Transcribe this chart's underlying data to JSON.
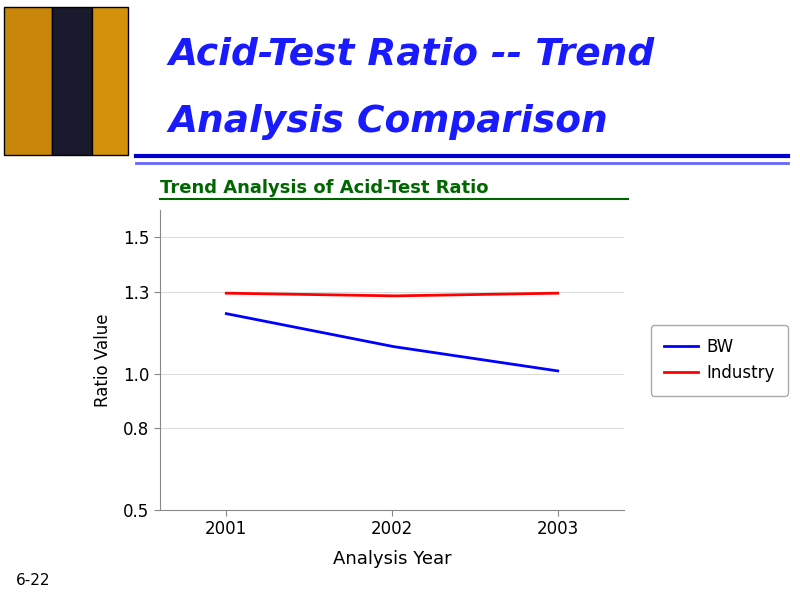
{
  "title_line1": "Acid-Test Ratio -- Trend",
  "title_line2": "Analysis Comparison",
  "chart_title": "Trend Analysis of Acid-Test Ratio",
  "xlabel": "Analysis Year",
  "ylabel": "Ratio Value",
  "years": [
    2001,
    2002,
    2003
  ],
  "bw_values": [
    1.22,
    1.1,
    1.01
  ],
  "industry_values": [
    1.295,
    1.285,
    1.295
  ],
  "ylim": [
    0.5,
    1.6
  ],
  "yticks": [
    0.5,
    0.8,
    1.0,
    1.3,
    1.5
  ],
  "xticks": [
    2001,
    2002,
    2003
  ],
  "bw_color": "#0000FF",
  "industry_color": "#FF0000",
  "title_color": "#1a1aff",
  "chart_title_color": "#006600",
  "header_bg": "#ffffff",
  "plot_bg": "#ffffff",
  "slide_bg": "#ffffff",
  "legend_labels": [
    "BW",
    "Industry"
  ],
  "footnote": "6-22",
  "line_width": 2.0,
  "header_line_color": "#0000cc",
  "header_line2_color": "#6666ff",
  "building_colors": [
    "#c8860a",
    "#1a1a2e",
    "#d4920c"
  ],
  "xlim": [
    2000.6,
    2003.4
  ]
}
